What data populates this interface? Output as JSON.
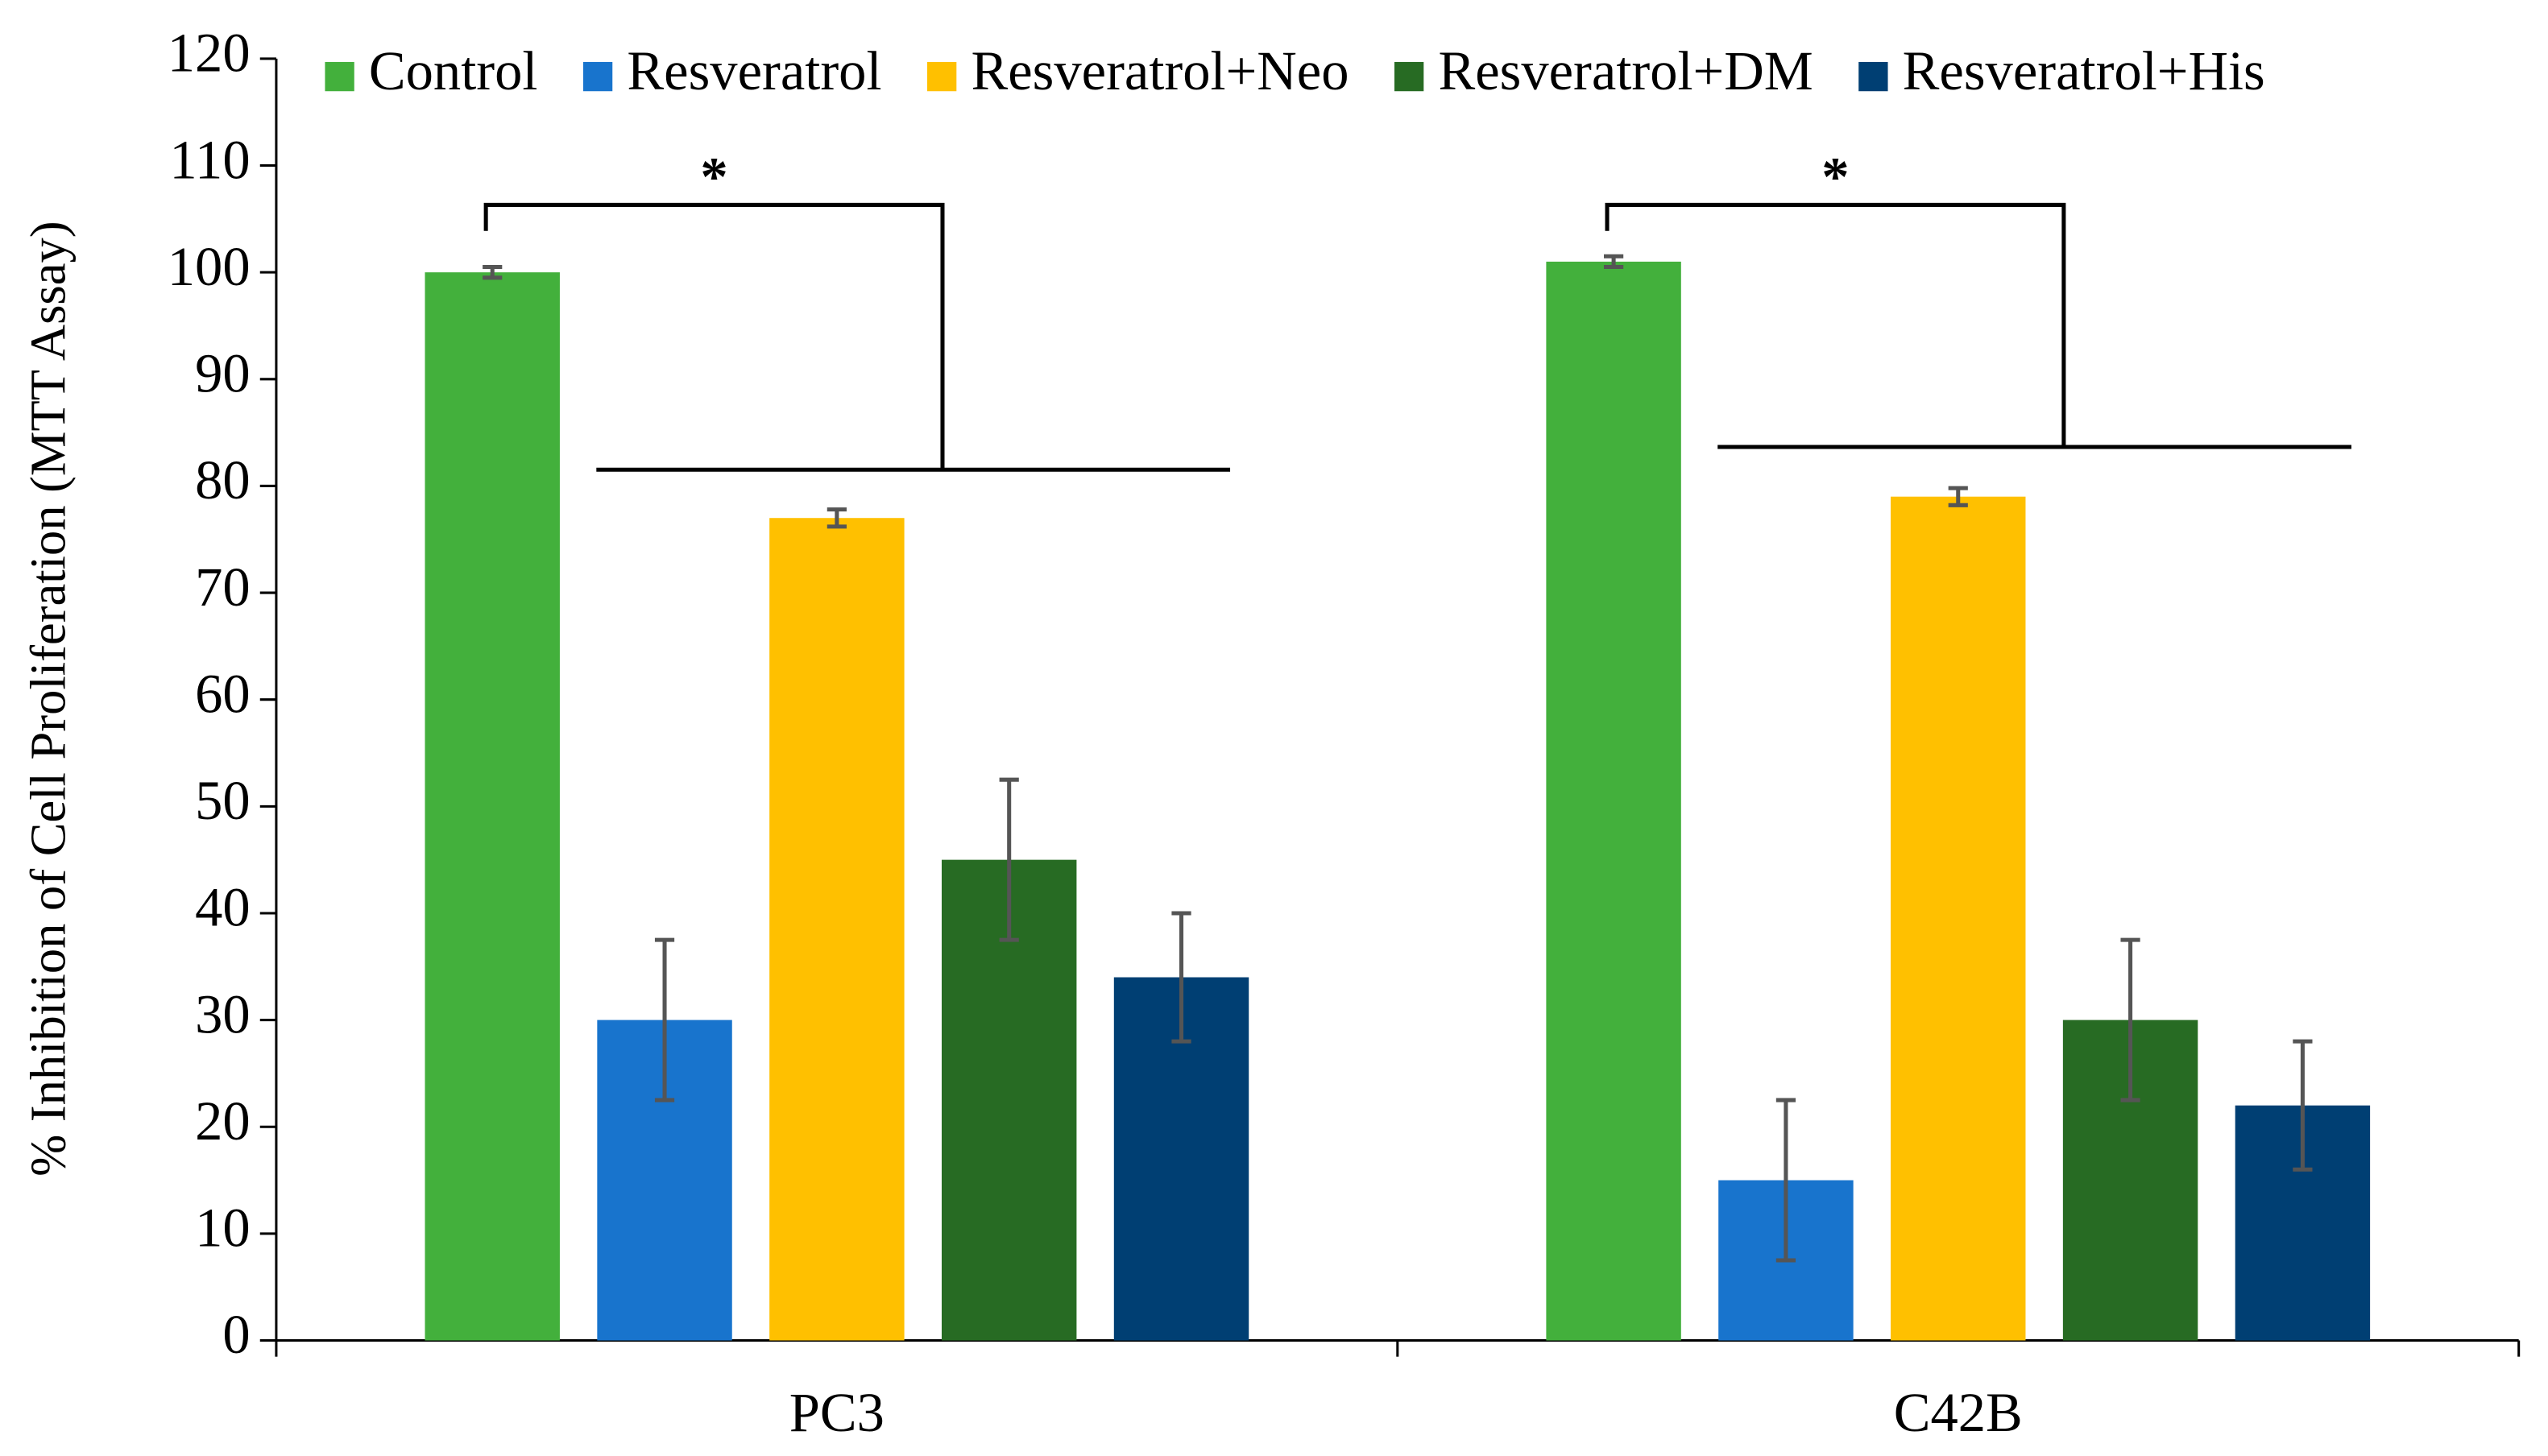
{
  "chart_data": {
    "type": "bar",
    "y_label": "% Inhibition of Cell Proliferation (MTT Assay)",
    "categories": [
      "PC3",
      "C42B"
    ],
    "series": [
      {
        "name": "Control",
        "color": "#43b03c",
        "values": [
          100,
          101
        ],
        "errors": [
          0.5,
          0.5
        ]
      },
      {
        "name": "Resveratrol",
        "color": "#1874cd",
        "values": [
          30,
          15
        ],
        "errors": [
          7.5,
          7.5
        ]
      },
      {
        "name": "Resveratrol+Neo",
        "color": "#ffc000",
        "values": [
          77,
          79
        ],
        "errors": [
          0.8,
          0.8
        ]
      },
      {
        "name": "Resveratrol+DM",
        "color": "#276b23",
        "values": [
          45,
          30
        ],
        "errors": [
          7.5,
          7.5
        ]
      },
      {
        "name": "Resveratrol+His",
        "color": "#003f73",
        "values": [
          34,
          22
        ],
        "errors": [
          6,
          6
        ]
      }
    ],
    "annotations": [
      "*",
      "*"
    ],
    "ylim": [
      0,
      120
    ],
    "yticks": [
      0,
      10,
      20,
      30,
      40,
      50,
      60,
      70,
      80,
      90,
      100,
      110,
      120
    ],
    "grid": false,
    "legend": "top"
  }
}
